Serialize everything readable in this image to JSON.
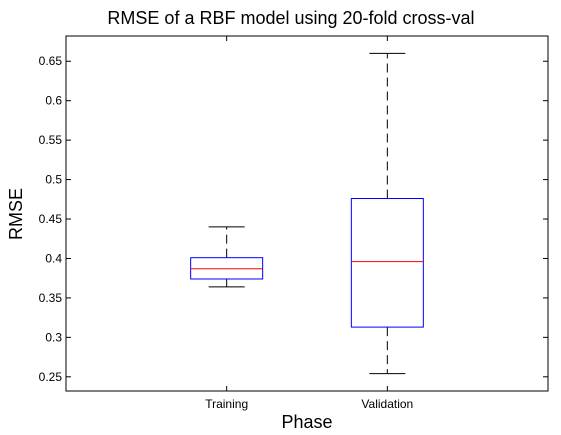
{
  "chart_data": {
    "type": "box",
    "title": "RMSE of a RBF model using 20-fold cross-val",
    "xlabel": "Phase",
    "ylabel": "RMSE",
    "ylim": [
      0.232,
      0.682
    ],
    "yticks": [
      0.25,
      0.3,
      0.35,
      0.4,
      0.45,
      0.5,
      0.55,
      0.6,
      0.65
    ],
    "ytick_labels": [
      "0.25",
      "0.3",
      "0.35",
      "0.4",
      "0.45",
      "0.5",
      "0.55",
      "0.6",
      "0.65"
    ],
    "categories": [
      "Training",
      "Validation"
    ],
    "boxes": [
      {
        "category": "Training",
        "whisker_low": 0.364,
        "q1": 0.374,
        "median": 0.387,
        "q3": 0.401,
        "whisker_high": 0.44
      },
      {
        "category": "Validation",
        "whisker_low": 0.254,
        "q1": 0.313,
        "median": 0.396,
        "q3": 0.476,
        "whisker_high": 0.66
      }
    ],
    "grid": false,
    "colors": {
      "box": "#0000ff",
      "median": "#ff0000",
      "whisker": "#000000",
      "axes": "#000000"
    }
  }
}
